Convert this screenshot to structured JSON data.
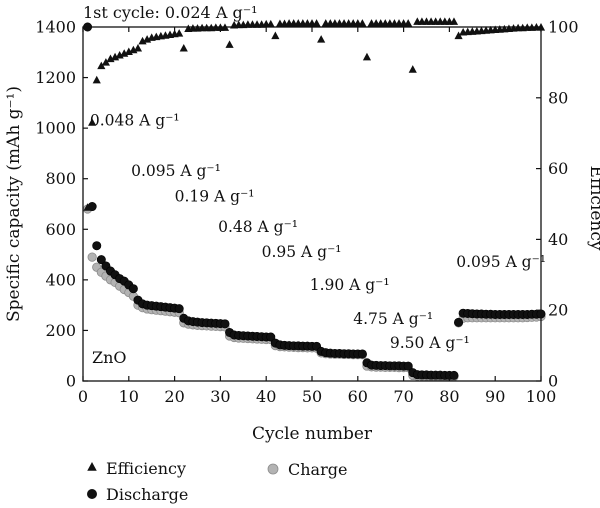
{
  "chart_data": {
    "type": "scatter",
    "title": "1st cycle: 0.024 A g⁻¹",
    "sample_label": "ZnO",
    "xlabel": "Cycle number",
    "ylabel_left": "Specific capacity (mAh g⁻¹)",
    "ylabel_right": "Efficiency",
    "xlim": [
      0,
      100
    ],
    "ylim_left": [
      0,
      1400
    ],
    "ylim_right": [
      0,
      100
    ],
    "x_ticks": [
      0,
      10,
      20,
      30,
      40,
      50,
      60,
      70,
      80,
      90,
      100
    ],
    "y_ticks_left": [
      0,
      200,
      400,
      600,
      800,
      1000,
      1200,
      1400
    ],
    "y_ticks_right": [
      0,
      20,
      40,
      60,
      80,
      100
    ],
    "grid": false,
    "legend_position": "bottom",
    "colors": {
      "efficiency": "#111111",
      "discharge": "#111111",
      "charge": "#b3b3b3",
      "charge_edge": "#8c8c8c"
    },
    "annotations": [
      {
        "text": "0.048 A g⁻¹",
        "x": 1.5,
        "y": 1010,
        "axis": "left"
      },
      {
        "text": "0.095 A g⁻¹",
        "x": 10.5,
        "y": 810,
        "axis": "left"
      },
      {
        "text": "0.19 A g⁻¹",
        "x": 20,
        "y": 710,
        "axis": "left"
      },
      {
        "text": "0.48 A g⁻¹",
        "x": 29.5,
        "y": 590,
        "axis": "left"
      },
      {
        "text": "0.95 A g⁻¹",
        "x": 39,
        "y": 490,
        "axis": "left"
      },
      {
        "text": "1.90 A g⁻¹",
        "x": 49.5,
        "y": 360,
        "axis": "left"
      },
      {
        "text": "4.75 A g⁻¹",
        "x": 59,
        "y": 225,
        "axis": "left"
      },
      {
        "text": "9.50 A g⁻¹",
        "x": 67,
        "y": 130,
        "axis": "left"
      },
      {
        "text": "0.095 A g⁻¹",
        "x": 81.5,
        "y": 450,
        "axis": "left"
      }
    ],
    "series": [
      {
        "name": "Efficiency",
        "axis": "right",
        "marker": "triangle",
        "x": [
          1,
          2,
          3,
          4,
          5,
          6,
          7,
          8,
          9,
          10,
          11,
          12,
          13,
          14,
          15,
          16,
          17,
          18,
          19,
          20,
          21,
          22,
          23,
          24,
          25,
          26,
          27,
          28,
          29,
          30,
          31,
          32,
          33,
          34,
          35,
          36,
          37,
          38,
          39,
          40,
          41,
          42,
          43,
          44,
          45,
          46,
          47,
          48,
          49,
          50,
          51,
          52,
          53,
          54,
          55,
          56,
          57,
          58,
          59,
          60,
          61,
          62,
          63,
          64,
          65,
          66,
          67,
          68,
          69,
          70,
          71,
          72,
          73,
          74,
          75,
          76,
          77,
          78,
          79,
          80,
          81,
          82,
          83,
          84,
          85,
          86,
          87,
          88,
          89,
          90,
          91,
          92,
          93,
          94,
          95,
          96,
          97,
          98,
          99,
          100
        ],
        "values": [
          49,
          73,
          85,
          89,
          90,
          91,
          91.5,
          92,
          92.5,
          93,
          93.5,
          94,
          96,
          96.5,
          97,
          97.2,
          97.4,
          97.6,
          97.8,
          98,
          98.2,
          94,
          99.5,
          99.6,
          99.6,
          99.7,
          99.7,
          99.7,
          99.8,
          99.8,
          99.8,
          95,
          100.5,
          100.6,
          100.6,
          100.7,
          100.7,
          100.7,
          100.7,
          100.8,
          100.8,
          97.5,
          100.9,
          100.9,
          101,
          101,
          101,
          101,
          101,
          101,
          101,
          96.5,
          101,
          101,
          101,
          101,
          101,
          101,
          101,
          101,
          101,
          91.5,
          101,
          101,
          101,
          101,
          101,
          101,
          101,
          101,
          101,
          88,
          101.5,
          101.5,
          101.5,
          101.5,
          101.5,
          101.5,
          101.5,
          101.5,
          101.5,
          97.5,
          98.5,
          98.6,
          98.7,
          98.8,
          98.9,
          99,
          99.1,
          99.2,
          99.3,
          99.4,
          99.5,
          99.6,
          99.7,
          99.7,
          99.8,
          99.8,
          99.9,
          99.9
        ]
      },
      {
        "name": "Discharge",
        "axis": "left",
        "marker": "circle",
        "x": [
          1,
          2,
          3,
          4,
          5,
          6,
          7,
          8,
          9,
          10,
          11,
          12,
          13,
          14,
          15,
          16,
          17,
          18,
          19,
          20,
          21,
          22,
          23,
          24,
          25,
          26,
          27,
          28,
          29,
          30,
          31,
          32,
          33,
          34,
          35,
          36,
          37,
          38,
          39,
          40,
          41,
          42,
          43,
          44,
          45,
          46,
          47,
          48,
          49,
          50,
          51,
          52,
          53,
          54,
          55,
          56,
          57,
          58,
          59,
          60,
          61,
          62,
          63,
          64,
          65,
          66,
          67,
          68,
          69,
          70,
          71,
          72,
          73,
          74,
          75,
          76,
          77,
          78,
          79,
          80,
          81,
          82,
          83,
          84,
          85,
          86,
          87,
          88,
          89,
          90,
          91,
          92,
          93,
          94,
          95,
          96,
          97,
          98,
          99,
          100
        ],
        "values": [
          1400,
          690,
          535,
          480,
          455,
          435,
          420,
          405,
          395,
          380,
          365,
          320,
          305,
          300,
          298,
          296,
          294,
          292,
          290,
          288,
          286,
          248,
          238,
          235,
          233,
          231,
          230,
          229,
          228,
          227,
          226,
          192,
          182,
          180,
          179,
          178,
          177,
          176,
          175,
          174,
          174,
          150,
          143,
          141,
          140,
          139,
          139,
          138,
          138,
          137,
          137,
          117,
          112,
          110,
          109,
          109,
          108,
          108,
          107,
          107,
          107,
          72,
          63,
          62,
          61,
          61,
          60,
          60,
          60,
          59,
          59,
          33,
          25,
          24,
          24,
          23,
          23,
          23,
          22,
          22,
          22,
          232,
          268,
          267,
          266,
          265,
          265,
          264,
          264,
          263,
          263,
          263,
          263,
          263,
          263,
          263,
          263,
          264,
          264,
          265
        ]
      },
      {
        "name": "Charge",
        "axis": "left",
        "marker": "circle",
        "x": [
          1,
          2,
          3,
          4,
          5,
          6,
          7,
          8,
          9,
          10,
          11,
          12,
          13,
          14,
          15,
          16,
          17,
          18,
          19,
          20,
          21,
          22,
          23,
          24,
          25,
          26,
          27,
          28,
          29,
          30,
          31,
          32,
          33,
          34,
          35,
          36,
          37,
          38,
          39,
          40,
          41,
          42,
          43,
          44,
          45,
          46,
          47,
          48,
          49,
          50,
          51,
          52,
          53,
          54,
          55,
          56,
          57,
          58,
          59,
          60,
          61,
          62,
          63,
          64,
          65,
          66,
          67,
          68,
          69,
          70,
          71,
          72,
          73,
          74,
          75,
          76,
          77,
          78,
          79,
          80,
          81,
          82,
          83,
          84,
          85,
          86,
          87,
          88,
          89,
          90,
          91,
          92,
          93,
          94,
          95,
          96,
          97,
          98,
          99,
          100
        ],
        "values": [
          680,
          490,
          450,
          430,
          415,
          400,
          390,
          375,
          362,
          350,
          335,
          300,
          290,
          285,
          282,
          280,
          278,
          276,
          274,
          272,
          270,
          230,
          225,
          222,
          220,
          219,
          218,
          217,
          216,
          215,
          214,
          178,
          172,
          170,
          169,
          168,
          167,
          166,
          165,
          164,
          164,
          140,
          136,
          135,
          134,
          133,
          132,
          132,
          131,
          131,
          130,
          111,
          108,
          107,
          106,
          106,
          105,
          105,
          104,
          104,
          104,
          59,
          56,
          55,
          55,
          54,
          54,
          54,
          53,
          53,
          53,
          22,
          20,
          20,
          19,
          19,
          19,
          19,
          18,
          18,
          18,
          230,
          248,
          250,
          250,
          250,
          250,
          250,
          250,
          250,
          250,
          250,
          250,
          250,
          250,
          250,
          251,
          252,
          253,
          255
        ]
      }
    ]
  }
}
